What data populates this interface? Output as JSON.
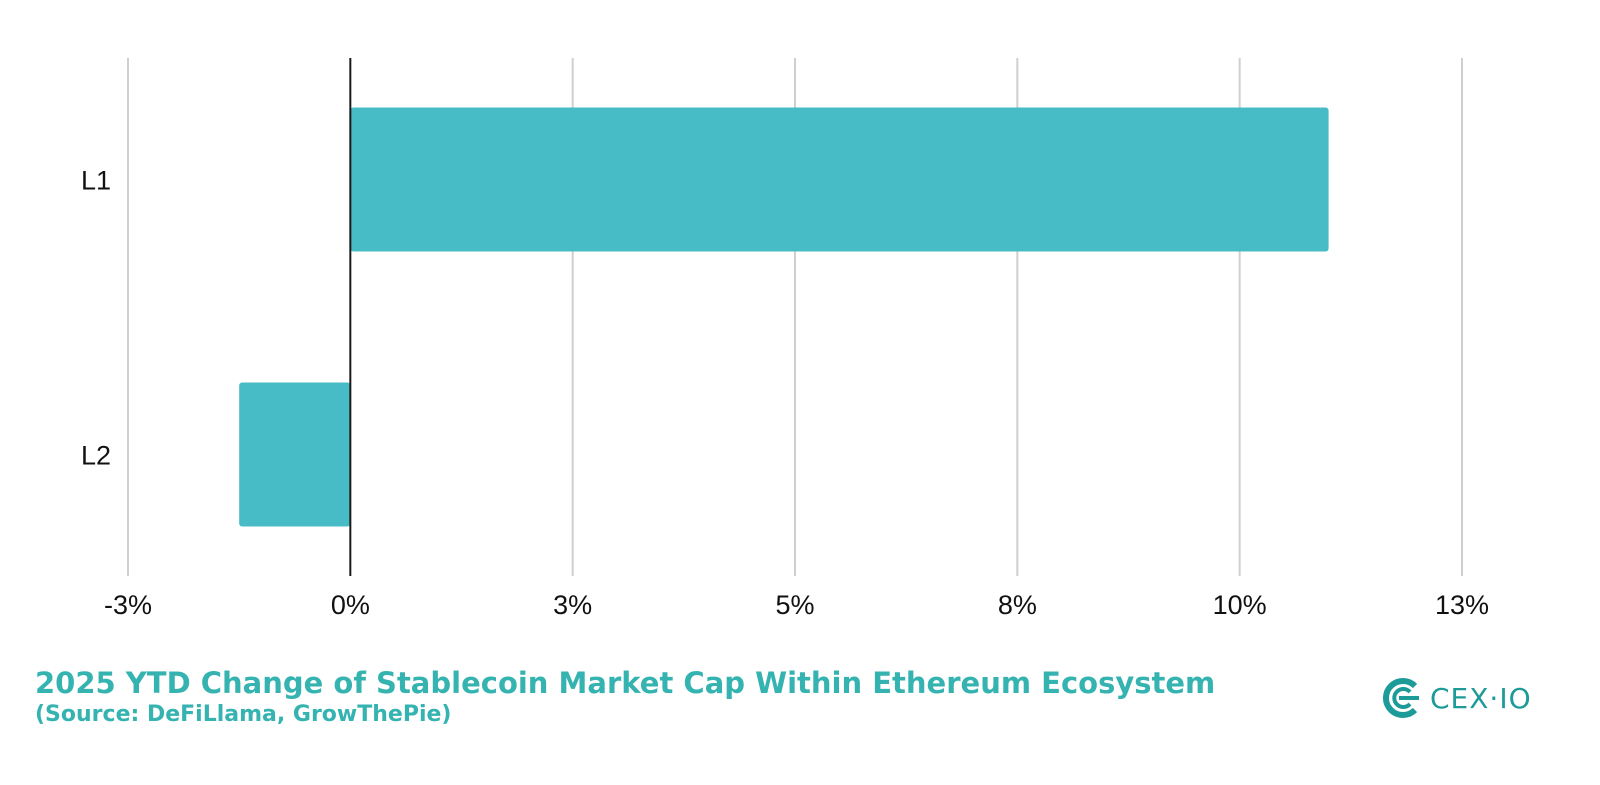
{
  "chart_data": {
    "type": "bar",
    "orientation": "horizontal",
    "categories": [
      "L1",
      "L2"
    ],
    "values": [
      11.0,
      -1.25
    ],
    "unit": "%",
    "xlim": [
      -2.5,
      12.5
    ],
    "xticks": [
      -2.5,
      0,
      2.5,
      5,
      7.5,
      10,
      12.5
    ],
    "xtick_labels": [
      "-3%",
      "0%",
      "3%",
      "5%",
      "8%",
      "10%",
      "13%"
    ],
    "grid": true,
    "bar_color": "#48bcc6"
  },
  "footer": {
    "title": "2025 YTD Change of Stablecoin Market Cap Within Ethereum Ecosystem",
    "source": "(Source: DeFiLlama, GrowThePie)",
    "accent_color": "#35b3b0"
  },
  "logo": {
    "text": "CEX·IO",
    "icon": "cex-io-logo-icon",
    "color": "#1c9b98"
  }
}
